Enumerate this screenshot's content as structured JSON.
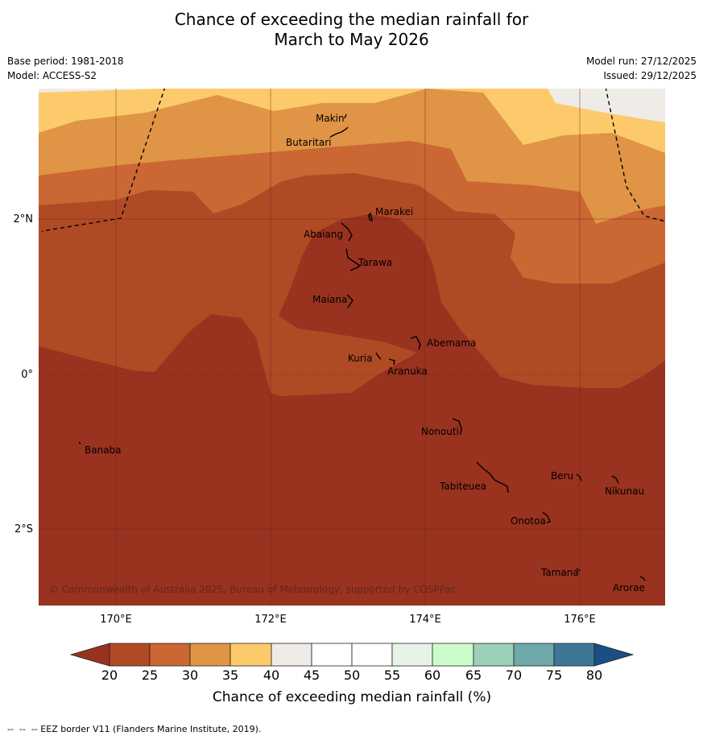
{
  "title": {
    "line1": "Chance of exceeding the median rainfall for",
    "line2": "March to May 2026"
  },
  "meta": {
    "base_period": "Base period: 1981-2018",
    "model": "Model: ACCESS-S2",
    "model_run": "Model run: 27/12/2025",
    "issued": "Issued: 29/12/2025"
  },
  "map": {
    "lon_range": [
      169,
      177.1
    ],
    "lat_range": [
      -3.0,
      3.7
    ],
    "x_ticks": [
      {
        "value": 170,
        "label": "170°E"
      },
      {
        "value": 172,
        "label": "172°E"
      },
      {
        "value": 174,
        "label": "174°E"
      },
      {
        "value": 176,
        "label": "176°E"
      }
    ],
    "y_ticks": [
      {
        "value": 2,
        "label": "2°N"
      },
      {
        "value": 0,
        "label": "0°"
      },
      {
        "value": -2,
        "label": "2°S"
      }
    ],
    "copyright": "© Commonwealth of Australia 2025, Bureau of Meteorology, supported by COSPPac",
    "places": [
      {
        "name": "Makin",
        "lon": 172.95,
        "lat": 3.27
      },
      {
        "name": "Butaritari",
        "lon": 172.75,
        "lat": 3.04
      },
      {
        "name": "Marakei",
        "lon": 173.3,
        "lat": 2.0
      },
      {
        "name": "Abaiang",
        "lon": 172.9,
        "lat": 1.8
      },
      {
        "name": "Tarawa",
        "lon": 173.05,
        "lat": 1.4
      },
      {
        "name": "Maiana",
        "lon": 173.0,
        "lat": 0.95
      },
      {
        "name": "Abemama",
        "lon": 173.85,
        "lat": 0.4
      },
      {
        "name": "Kuria",
        "lon": 173.4,
        "lat": 0.23
      },
      {
        "name": "Aranuka",
        "lon": 173.6,
        "lat": 0.18
      },
      {
        "name": "Banaba",
        "lon": 169.55,
        "lat": -0.87
      },
      {
        "name": "Nonouti",
        "lon": 174.4,
        "lat": -0.66
      },
      {
        "name": "Tabiteuea",
        "lon": 174.8,
        "lat": -1.3
      },
      {
        "name": "Beru",
        "lon": 175.98,
        "lat": -1.33
      },
      {
        "name": "Nikunau",
        "lon": 176.45,
        "lat": -1.38
      },
      {
        "name": "Onotoa",
        "lon": 175.57,
        "lat": -1.82
      },
      {
        "name": "Tamana",
        "lon": 176.0,
        "lat": -2.5
      },
      {
        "name": "Arorae",
        "lon": 176.82,
        "lat": -2.65
      }
    ]
  },
  "colorbar": {
    "ticks": [
      "20",
      "25",
      "30",
      "35",
      "40",
      "45",
      "50",
      "55",
      "60",
      "65",
      "70",
      "75",
      "80"
    ],
    "colors": [
      "#b04a25",
      "#cb6733",
      "#e09445",
      "#fdca6b",
      "#efebe7",
      "#ffffff",
      "#ffffff",
      "#e8f3e8",
      "#ccfccc",
      "#9dd0b8",
      "#6ea8a8",
      "#3f7698"
    ],
    "under_color": "#99321f",
    "over_color": "#1b4e85",
    "label": "Chance of exceeding median rainfall (%)"
  },
  "footer": "--  --  -- EEZ border V11 (Flanders Marine Institute, 2019)."
}
